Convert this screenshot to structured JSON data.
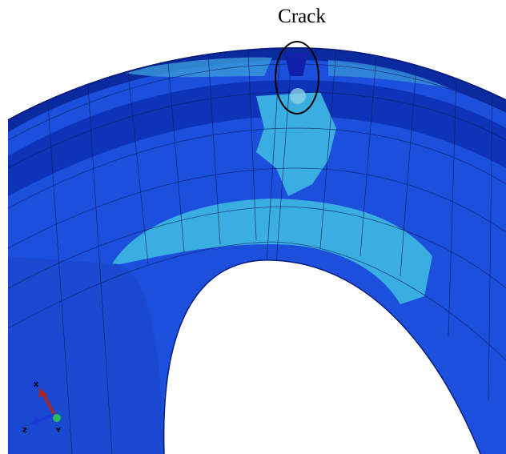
{
  "annotation": "Crack",
  "triad": {
    "x": "X",
    "y": "Y",
    "z": "Z"
  }
}
